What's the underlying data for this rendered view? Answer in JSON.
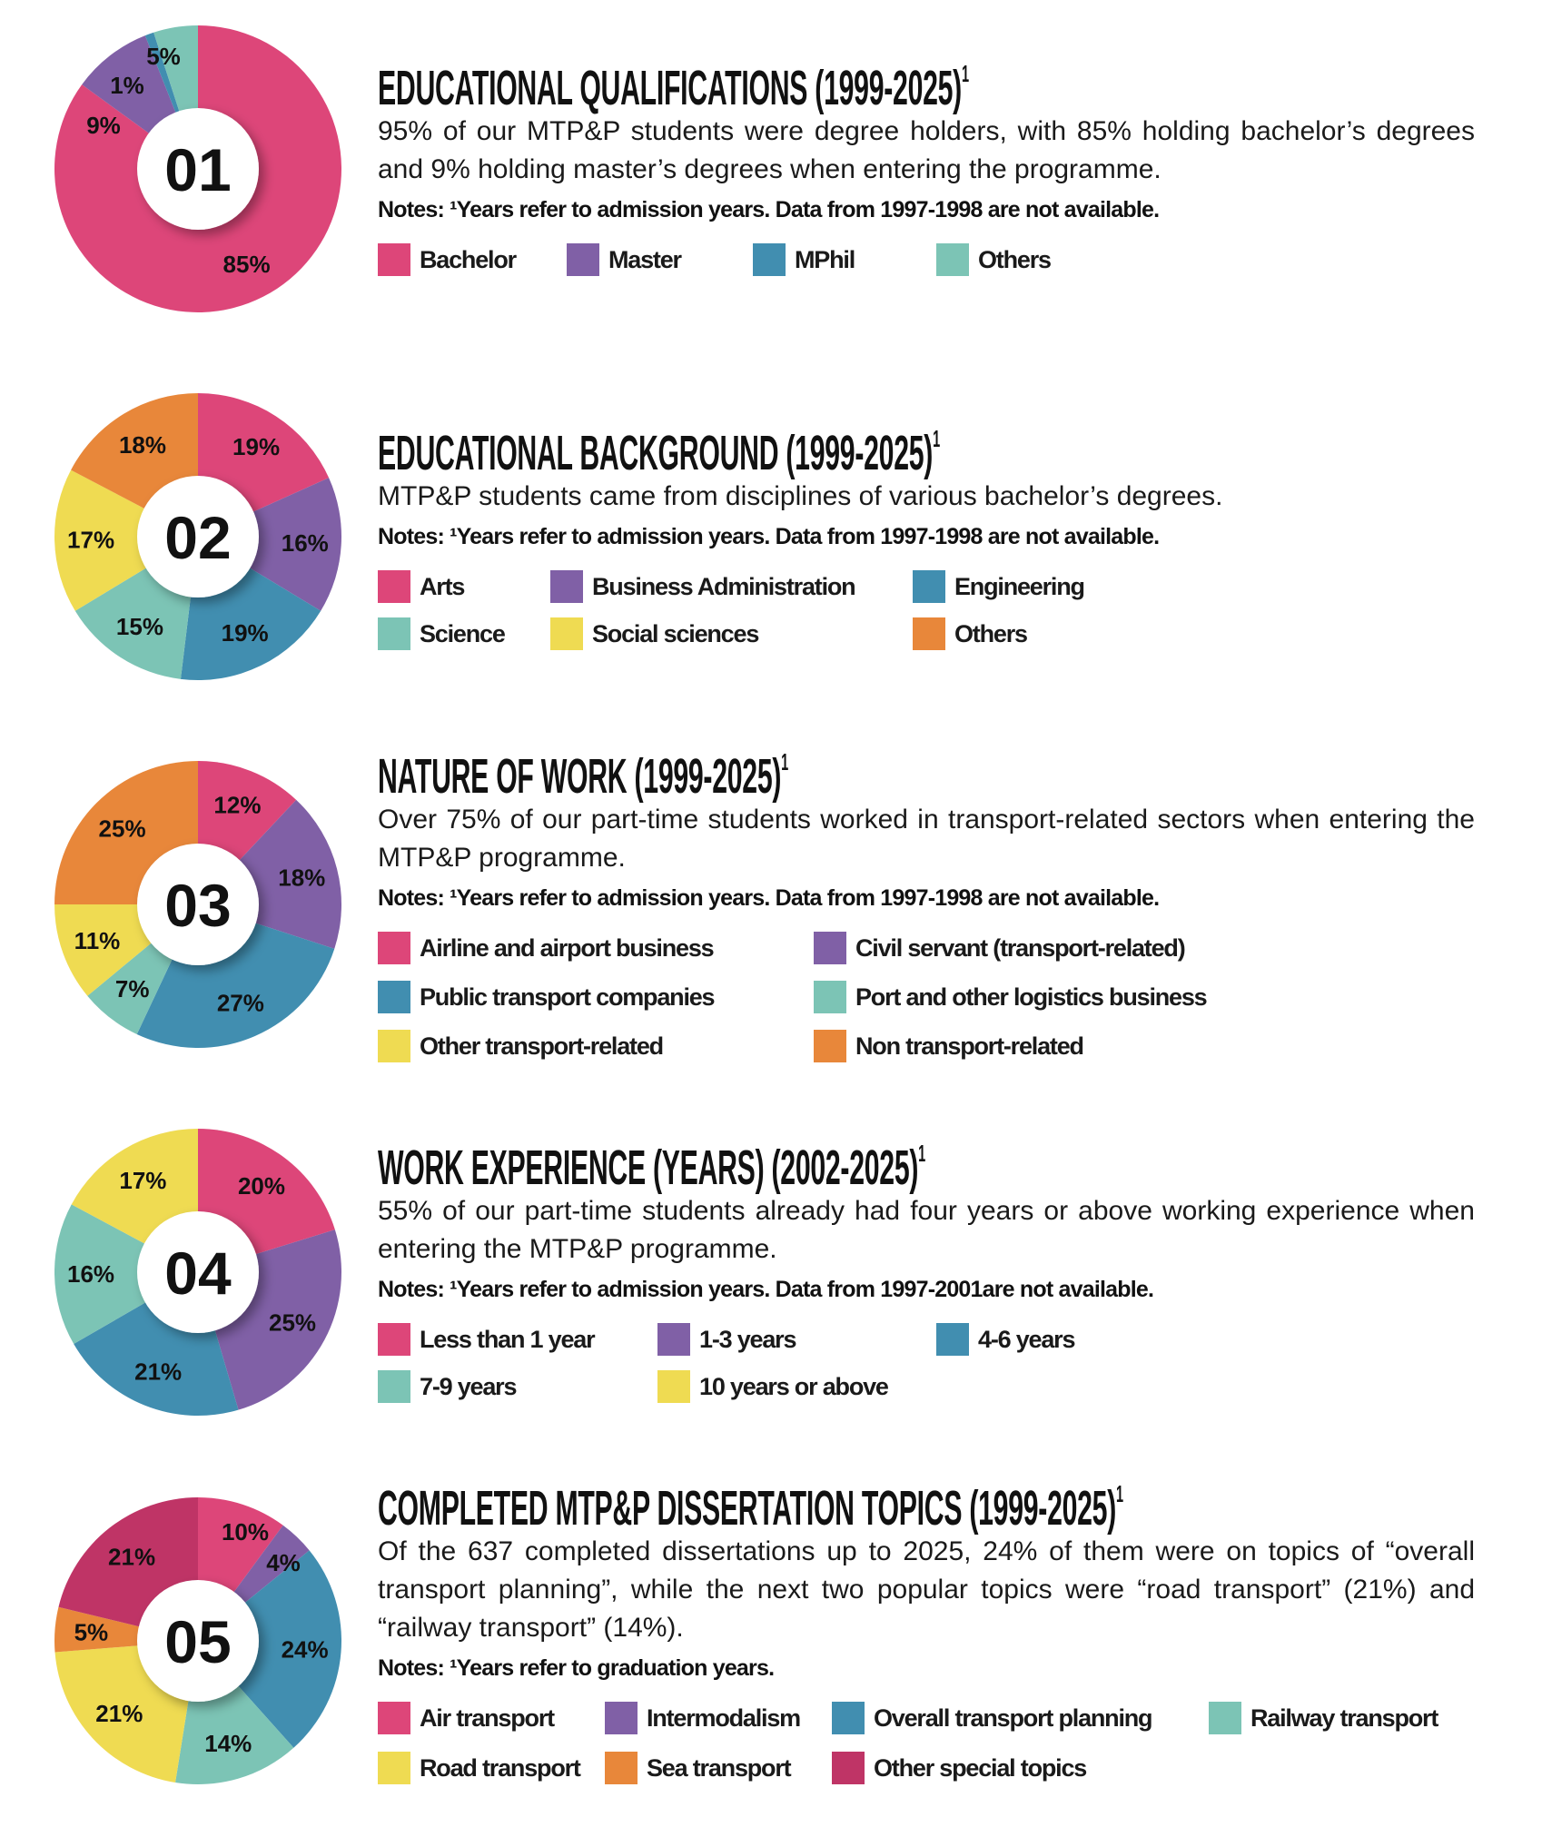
{
  "colors": {
    "pink": "#dd4679",
    "purple": "#8060a6",
    "blue": "#418eb0",
    "teal": "#7cc4b5",
    "yellow": "#efdb52",
    "orange": "#e8873a",
    "crimson": "#bf3466"
  },
  "chart_data": [
    {
      "type": "pie",
      "number": "01",
      "title": "EDUCATIONAL QUALIFICATIONS (1999-2025)",
      "sup": "1",
      "body": "95% of our MTP&P students were degree holders, with 85% holding bachelor’s degrees and 9% holding master’s degrees when entering the programme.",
      "notes": "Notes: ¹Years refer to admission years. Data from 1997-1998 are not available.",
      "slices": [
        {
          "label": "Bachelor",
          "value": 85,
          "text": "85%",
          "color": "pink"
        },
        {
          "label": "Master",
          "value": 9,
          "text": "9%",
          "color": "purple"
        },
        {
          "label": "MPhil",
          "value": 1,
          "text": "1%",
          "color": "blue"
        },
        {
          "label": "Others",
          "value": 5,
          "text": "5%",
          "color": "teal"
        }
      ]
    },
    {
      "type": "pie",
      "number": "02",
      "title": "EDUCATIONAL BACKGROUND (1999-2025)",
      "sup": "1",
      "body": "MTP&P students came from disciplines of various bachelor’s degrees.",
      "notes": "Notes: ¹Years refer to admission years. Data from 1997-1998 are not available.",
      "slices": [
        {
          "label": "Arts",
          "value": 19,
          "text": "19%",
          "color": "pink"
        },
        {
          "label": "Business Administration",
          "value": 16,
          "text": "16%",
          "color": "purple"
        },
        {
          "label": "Engineering",
          "value": 19,
          "text": "19%",
          "color": "blue"
        },
        {
          "label": "Science",
          "value": 15,
          "text": "15%",
          "color": "teal"
        },
        {
          "label": "Social sciences",
          "value": 17,
          "text": "17%",
          "color": "yellow"
        },
        {
          "label": "Others",
          "value": 18,
          "text": "18%",
          "color": "orange"
        }
      ]
    },
    {
      "type": "pie",
      "number": "03",
      "title": "NATURE OF WORK (1999-2025)",
      "sup": "1",
      "body": "Over 75% of our part-time students worked in transport-related sectors when entering the MTP&P programme.",
      "notes": "Notes: ¹Years refer to admission years. Data from 1997-1998 are not available.",
      "slices": [
        {
          "label": "Airline and airport business",
          "value": 12,
          "text": "12%",
          "color": "pink"
        },
        {
          "label": "Civil servant (transport-related)",
          "value": 18,
          "text": "18%",
          "color": "purple"
        },
        {
          "label": "Public transport companies",
          "value": 27,
          "text": "27%",
          "color": "blue"
        },
        {
          "label": "Port and other logistics business",
          "value": 7,
          "text": "7%",
          "color": "teal"
        },
        {
          "label": "Other transport-related",
          "value": 11,
          "text": "11%",
          "color": "yellow"
        },
        {
          "label": "Non transport-related",
          "value": 25,
          "text": "25%",
          "color": "orange"
        }
      ]
    },
    {
      "type": "pie",
      "number": "04",
      "title": "WORK EXPERIENCE (YEARS) (2002-2025)",
      "sup": "1",
      "body": "55% of our part-time students already had four years or above working experience when entering the MTP&P programme.",
      "notes": "Notes: ¹Years refer to admission years. Data from 1997-2001are not available.",
      "slices": [
        {
          "label": "Less than 1 year",
          "value": 20,
          "text": "20%",
          "color": "pink"
        },
        {
          "label": "1-3 years",
          "value": 25,
          "text": "25%",
          "color": "purple"
        },
        {
          "label": "4-6 years",
          "value": 21,
          "text": "21%",
          "color": "blue"
        },
        {
          "label": "7-9 years",
          "value": 16,
          "text": "16%",
          "color": "teal"
        },
        {
          "label": "10 years or above",
          "value": 17,
          "text": "17%",
          "color": "yellow"
        }
      ]
    },
    {
      "type": "pie",
      "number": "05",
      "title": "COMPLETED MTP&P DISSERTATION TOPICS (1999-2025)",
      "sup": "1",
      "body": "Of the 637 completed dissertations up to 2025, 24% of them were on topics of “overall transport planning”, while the next two popular topics were “road transport” (21%) and “railway transport” (14%).",
      "notes": "Notes: ¹Years refer to graduation years.",
      "slices": [
        {
          "label": "Air transport",
          "value": 10,
          "text": "10%",
          "color": "pink"
        },
        {
          "label": "Intermodalism",
          "value": 4,
          "text": "4%",
          "color": "purple"
        },
        {
          "label": "Overall transport planning",
          "value": 24,
          "text": "24%",
          "color": "blue"
        },
        {
          "label": "Railway transport",
          "value": 14,
          "text": "14%",
          "color": "teal"
        },
        {
          "label": "Road transport",
          "value": 21,
          "text": "21%",
          "color": "yellow"
        },
        {
          "label": "Sea transport",
          "value": 5,
          "text": "5%",
          "color": "orange"
        },
        {
          "label": "Other special topics",
          "value": 21,
          "text": "21%",
          "color": "crimson"
        }
      ]
    }
  ]
}
